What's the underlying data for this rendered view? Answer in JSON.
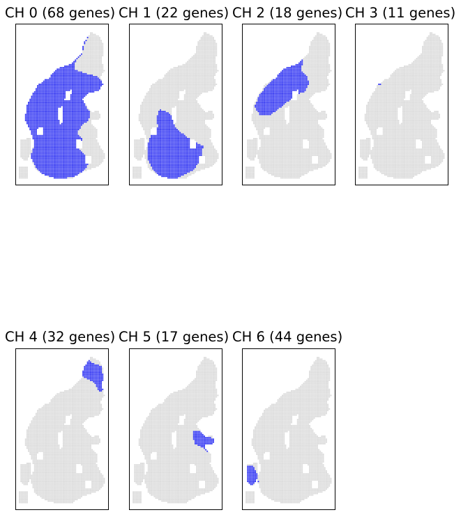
{
  "chart_data": [
    {
      "type": "scatter",
      "title": "CH 0 (68 genes)",
      "highlight": "ch0",
      "colors": {
        "background_spots": "#d9d9d9",
        "highlight_spots": "#2a2ef2"
      }
    },
    {
      "type": "scatter",
      "title": "CH 1 (22 genes)",
      "highlight": "ch1",
      "colors": {
        "background_spots": "#d9d9d9",
        "highlight_spots": "#2a2ef2"
      }
    },
    {
      "type": "scatter",
      "title": "CH 2 (18 genes)",
      "highlight": "ch2",
      "colors": {
        "background_spots": "#d9d9d9",
        "highlight_spots": "#2a2ef2"
      }
    },
    {
      "type": "scatter",
      "title": "CH 3 (11 genes)",
      "highlight": "ch3",
      "colors": {
        "background_spots": "#d9d9d9",
        "highlight_spots": "#2a2ef2"
      }
    },
    {
      "type": "scatter",
      "title": "CH 4 (32 genes)",
      "highlight": "ch4",
      "colors": {
        "background_spots": "#d9d9d9",
        "highlight_spots": "#2a2ef2"
      }
    },
    {
      "type": "scatter",
      "title": "CH 5 (17 genes)",
      "highlight": "ch5",
      "colors": {
        "background_spots": "#d9d9d9",
        "highlight_spots": "#2a2ef2"
      }
    },
    {
      "type": "scatter",
      "title": "CH 6 (44 genes)",
      "highlight": "ch6",
      "colors": {
        "background_spots": "#d9d9d9",
        "highlight_spots": "#2a2ef2"
      }
    }
  ]
}
